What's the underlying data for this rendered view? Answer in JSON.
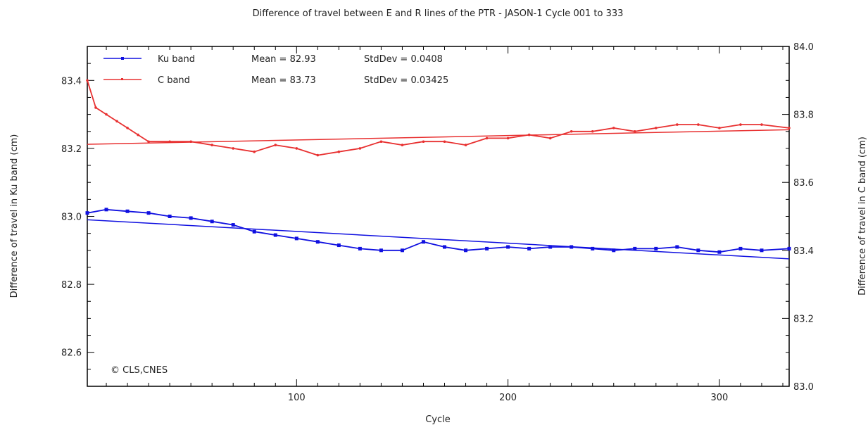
{
  "chart_data": {
    "type": "line",
    "title": "Difference of travel between E and R lines of the PTR - JASON-1 Cycle 001 to 333",
    "xlabel": "Cycle",
    "ylabel_left": "Difference of travel in Ku band (cm)",
    "ylabel_right": "Difference of travel in C band (cm)",
    "xlim": [
      1,
      333
    ],
    "ylim_left": [
      82.5,
      83.5
    ],
    "ylim_right": [
      83.0,
      84.0
    ],
    "x_ticks": [
      "100",
      "200",
      "300"
    ],
    "y_left_ticks": [
      "82.6",
      "82.8",
      "83.0",
      "83.2",
      "83.4"
    ],
    "y_right_ticks": [
      "83.0",
      "83.2",
      "83.4",
      "83.6",
      "83.8",
      "84.0"
    ],
    "grid": false,
    "legend_position": "top-left",
    "copyright": "© CLS,CNES",
    "series": [
      {
        "name": "Ku band",
        "axis": "left",
        "color": "#1010e0",
        "mean_label": "Mean = 82.93",
        "std_label": "StdDev = 0.0408",
        "x": [
          1,
          10,
          20,
          30,
          40,
          50,
          60,
          70,
          80,
          90,
          100,
          110,
          120,
          130,
          140,
          150,
          160,
          170,
          180,
          190,
          200,
          210,
          220,
          230,
          240,
          250,
          260,
          270,
          280,
          290,
          300,
          310,
          320,
          333
        ],
        "values": [
          83.01,
          83.02,
          83.015,
          83.01,
          83.0,
          82.995,
          82.985,
          82.975,
          82.955,
          82.945,
          82.935,
          82.925,
          82.915,
          82.905,
          82.9,
          82.9,
          82.925,
          82.91,
          82.9,
          82.905,
          82.91,
          82.905,
          82.91,
          82.91,
          82.905,
          82.9,
          82.905,
          82.905,
          82.91,
          82.9,
          82.895,
          82.905,
          82.9,
          82.905
        ],
        "trend": [
          82.99,
          82.875
        ]
      },
      {
        "name": "C band",
        "axis": "right",
        "color": "#e83030",
        "mean_label": "Mean = 83.73",
        "std_label": "StdDev = 0.03425",
        "x": [
          1,
          5,
          10,
          15,
          20,
          25,
          30,
          40,
          50,
          60,
          70,
          80,
          90,
          100,
          110,
          120,
          130,
          140,
          150,
          160,
          170,
          180,
          190,
          200,
          210,
          220,
          230,
          240,
          250,
          260,
          270,
          280,
          290,
          300,
          310,
          320,
          333
        ],
        "values": [
          83.9,
          83.82,
          83.8,
          83.78,
          83.76,
          83.74,
          83.72,
          83.72,
          83.72,
          83.71,
          83.7,
          83.69,
          83.71,
          83.7,
          83.68,
          83.69,
          83.7,
          83.72,
          83.71,
          83.72,
          83.72,
          83.71,
          83.73,
          83.73,
          83.74,
          83.73,
          83.75,
          83.75,
          83.76,
          83.75,
          83.76,
          83.77,
          83.77,
          83.76,
          83.77,
          83.77,
          83.76
        ],
        "trend": [
          83.712,
          83.755
        ]
      }
    ]
  }
}
